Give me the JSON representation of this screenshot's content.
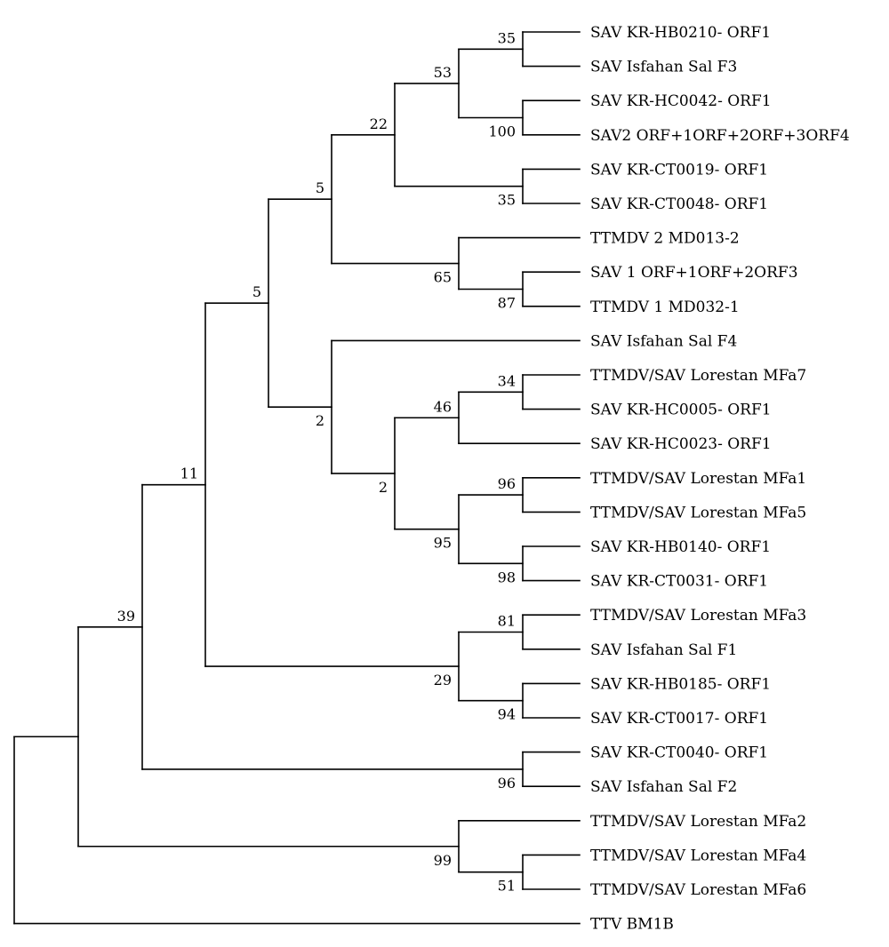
{
  "leaves": [
    {
      "id": "L1",
      "label": "SAV KR-HB0210- ORF1"
    },
    {
      "id": "L2",
      "label": "SAV Isfahan Sal F3"
    },
    {
      "id": "L3",
      "label": "SAV KR-HC0042- ORF1"
    },
    {
      "id": "L4",
      "label": "SAV2 ORF+1ORF+2ORF+3ORF4"
    },
    {
      "id": "L5",
      "label": "SAV KR-CT0019- ORF1"
    },
    {
      "id": "L6",
      "label": "SAV KR-CT0048- ORF1"
    },
    {
      "id": "L7",
      "label": "TTMDV 2 MD013-2"
    },
    {
      "id": "L8",
      "label": "SAV 1 ORF+1ORF+2ORF3"
    },
    {
      "id": "L9",
      "label": "TTMDV 1 MD032-1"
    },
    {
      "id": "L10",
      "label": "SAV Isfahan Sal F4"
    },
    {
      "id": "L11",
      "label": "TTMDV/SAV Lorestan MFa7"
    },
    {
      "id": "L12",
      "label": "SAV KR-HC0005- ORF1"
    },
    {
      "id": "L13",
      "label": "SAV KR-HC0023- ORF1"
    },
    {
      "id": "L14",
      "label": "TTMDV/SAV Lorestan MFa1"
    },
    {
      "id": "L15",
      "label": "TTMDV/SAV Lorestan MFa5"
    },
    {
      "id": "L16",
      "label": "SAV KR-HB0140- ORF1"
    },
    {
      "id": "L17",
      "label": "SAV KR-CT0031- ORF1"
    },
    {
      "id": "L18",
      "label": "TTMDV/SAV Lorestan MFa3"
    },
    {
      "id": "L19",
      "label": "SAV Isfahan Sal F1"
    },
    {
      "id": "L20",
      "label": "SAV KR-HB0185- ORF1"
    },
    {
      "id": "L21",
      "label": "SAV KR-CT0017- ORF1"
    },
    {
      "id": "L22",
      "label": "SAV KR-CT0040- ORF1"
    },
    {
      "id": "L23",
      "label": "SAV Isfahan Sal F2"
    },
    {
      "id": "L24",
      "label": "TTMDV/SAV Lorestan MFa2"
    },
    {
      "id": "L25",
      "label": "TTMDV/SAV Lorestan MFa4"
    },
    {
      "id": "L26",
      "label": "TTMDV/SAV Lorestan MFa6"
    },
    {
      "id": "L27",
      "label": "TTV BM1B"
    }
  ],
  "nodes": [
    {
      "id": "N1",
      "children": [
        "L1",
        "L2"
      ],
      "support": "35"
    },
    {
      "id": "N2",
      "children": [
        "L3",
        "L4"
      ],
      "support": "100"
    },
    {
      "id": "N3",
      "children": [
        "N1",
        "N2"
      ],
      "support": "53"
    },
    {
      "id": "N4",
      "children": [
        "L5",
        "L6"
      ],
      "support": "35"
    },
    {
      "id": "N5",
      "children": [
        "N3",
        "N4"
      ],
      "support": "22"
    },
    {
      "id": "N6",
      "children": [
        "L8",
        "L9"
      ],
      "support": "87"
    },
    {
      "id": "N7",
      "children": [
        "L7",
        "N6"
      ],
      "support": "65"
    },
    {
      "id": "N8",
      "children": [
        "N5",
        "N7"
      ],
      "support": "5"
    },
    {
      "id": "N9",
      "children": [
        "L11",
        "L12"
      ],
      "support": "34"
    },
    {
      "id": "N10",
      "children": [
        "N9",
        "L13"
      ],
      "support": "46"
    },
    {
      "id": "N11",
      "children": [
        "L14",
        "L15"
      ],
      "support": "96"
    },
    {
      "id": "N12",
      "children": [
        "L16",
        "L17"
      ],
      "support": "98"
    },
    {
      "id": "N13",
      "children": [
        "N11",
        "N12"
      ],
      "support": "95"
    },
    {
      "id": "N14",
      "children": [
        "N10",
        "N13"
      ],
      "support": "2"
    },
    {
      "id": "N15",
      "children": [
        "L10",
        "N14"
      ],
      "support": "2"
    },
    {
      "id": "N16",
      "children": [
        "N8",
        "N15"
      ],
      "support": "5"
    },
    {
      "id": "N17",
      "children": [
        "L18",
        "L19"
      ],
      "support": "81"
    },
    {
      "id": "N18",
      "children": [
        "L20",
        "L21"
      ],
      "support": "94"
    },
    {
      "id": "N19",
      "children": [
        "N17",
        "N18"
      ],
      "support": "29"
    },
    {
      "id": "N20",
      "children": [
        "N16",
        "N19"
      ],
      "support": "11"
    },
    {
      "id": "N21",
      "children": [
        "L22",
        "L23"
      ],
      "support": "96"
    },
    {
      "id": "N22",
      "children": [
        "N20",
        "N21"
      ],
      "support": "39"
    },
    {
      "id": "N23",
      "children": [
        "L25",
        "L26"
      ],
      "support": "51"
    },
    {
      "id": "N24",
      "children": [
        "L24",
        "N23"
      ],
      "support": "99"
    },
    {
      "id": "N25",
      "children": [
        "N22",
        "N24"
      ],
      "support": ""
    },
    {
      "id": "N26",
      "children": [
        "N25",
        "L27"
      ],
      "support": ""
    }
  ],
  "root": "N26"
}
